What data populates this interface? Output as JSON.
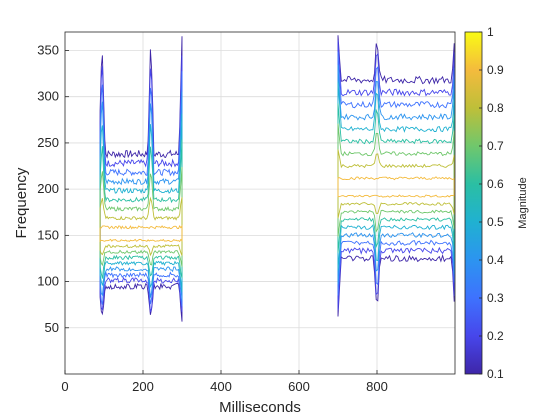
{
  "chart_data": {
    "type": "contour",
    "title": "",
    "xlabel": "Milliseconds",
    "ylabel": "Frequency",
    "xlim": [
      0,
      1000
    ],
    "ylim": [
      0,
      370
    ],
    "xticks": [
      0,
      200,
      400,
      600,
      800
    ],
    "yticks": [
      50,
      100,
      150,
      200,
      250,
      300,
      350
    ],
    "grid": true,
    "colorbar": {
      "label": "Magnitude",
      "ticks": [
        0.1,
        0.2,
        0.3,
        0.4,
        0.5,
        0.6,
        0.7,
        0.8,
        0.9,
        1
      ],
      "tick_labels": [
        "0.1",
        "0.2",
        "0.3",
        "0.4",
        "0.5",
        "0.6",
        "0.7",
        "0.8",
        "0.9",
        "1"
      ],
      "range": [
        0.1,
        1
      ],
      "colormap": "parula",
      "colors": [
        "#3e26a8",
        "#4746eb",
        "#3e72fe",
        "#2c94f0",
        "#20b1d1",
        "#2bbfa3",
        "#70c76c",
        "#bebf39",
        "#f4bb3d",
        "#f9fb15"
      ]
    },
    "components": [
      {
        "name": "",
        "t_start": 90,
        "t_end": 300,
        "center_freq": 150,
        "top_freq": 238,
        "bottom_freq": 95,
        "clicks_at": [
          95,
          220,
          300
        ]
      },
      {
        "name": "",
        "t_start": 700,
        "t_end": 1000,
        "center_freq": 200,
        "top_freq": 318,
        "bottom_freq": 125,
        "clicks_at": [
          700,
          800,
          1000
        ]
      }
    ],
    "levels": [
      0.1,
      0.2,
      0.3,
      0.4,
      0.5,
      0.6,
      0.7,
      0.8,
      0.9
    ]
  }
}
